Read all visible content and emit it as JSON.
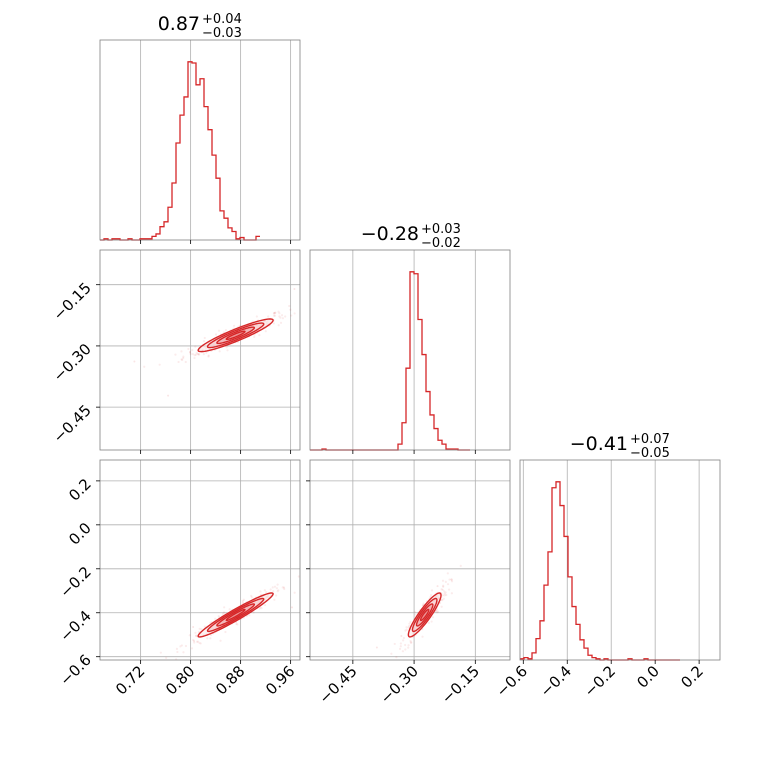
{
  "chart_data": {
    "type": "corner",
    "color": "#d62728",
    "parameters": [
      {
        "title_value": "0.87",
        "err_plus": "+0.04",
        "err_minus": "−0.03"
      },
      {
        "title_value": "−0.28",
        "err_plus": "+0.03",
        "err_minus": "−0.02"
      },
      {
        "title_value": "−0.41",
        "err_plus": "+0.07",
        "err_minus": "−0.05"
      }
    ],
    "ranges": [
      [
        0.655,
        0.975
      ],
      [
        -0.555,
        -0.065
      ],
      [
        -0.615,
        0.295
      ]
    ],
    "ticks": [
      {
        "values": [
          0.72,
          0.8,
          0.88,
          0.96
        ],
        "labels": [
          "0.72",
          "0.80",
          "0.88",
          "0.96"
        ]
      },
      {
        "values": [
          -0.45,
          -0.3,
          -0.15
        ],
        "labels": [
          "−0.45",
          "−0.30",
          "−0.15"
        ]
      },
      {
        "values": [
          -0.6,
          -0.4,
          -0.2,
          0.0,
          0.2
        ],
        "labels": [
          "−0.6",
          "−0.4",
          "−0.2",
          "0.0",
          "0.2"
        ]
      }
    ],
    "histograms": [
      {
        "edges_start": 0.655,
        "bin_width": 0.0064,
        "counts": [
          0,
          1,
          0,
          1,
          1,
          0,
          0,
          1,
          0,
          0,
          1,
          1,
          1,
          3,
          5,
          11,
          15,
          27,
          47,
          80,
          103,
          118,
          147,
          146,
          128,
          133,
          110,
          91,
          70,
          51,
          24,
          18,
          10,
          7,
          1,
          2,
          0,
          0,
          0,
          3
        ]
      },
      {
        "edges_start": -0.555,
        "bin_width": 0.0098,
        "counts": [
          0,
          0,
          0,
          1,
          0,
          0,
          0,
          0,
          0,
          0,
          0,
          0,
          0,
          0,
          0,
          0,
          0,
          0,
          0,
          0,
          0,
          0,
          6,
          28,
          84,
          183,
          181,
          134,
          98,
          60,
          36,
          22,
          10,
          6,
          1,
          1,
          1,
          0,
          0,
          0
        ]
      },
      {
        "edges_start": -0.615,
        "bin_width": 0.0182,
        "counts": [
          1,
          2,
          1,
          6,
          18,
          33,
          63,
          91,
          145,
          150,
          130,
          104,
          70,
          45,
          30,
          17,
          10,
          4,
          2,
          1,
          0,
          1,
          0,
          0,
          0,
          0,
          0,
          1,
          0,
          0,
          0,
          1,
          0,
          0,
          0,
          0,
          0,
          0,
          0,
          0
        ]
      }
    ],
    "correlations": {
      "p1_vs_p0": 0.92,
      "p2_vs_p0": 0.96,
      "p2_vs_p1": 0.9
    },
    "grid": true
  }
}
